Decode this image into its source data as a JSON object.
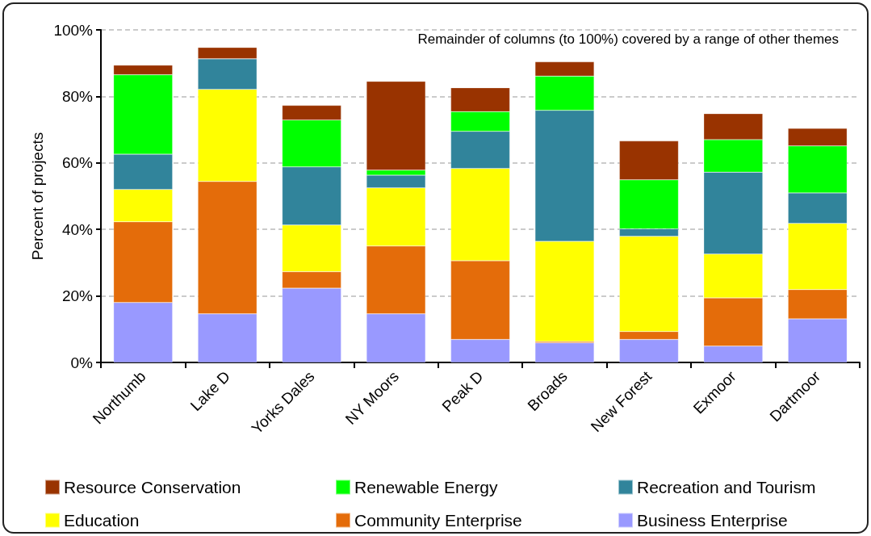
{
  "chart_data": {
    "type": "bar",
    "stacked": true,
    "ylabel": "Percent of projects",
    "annotations": [
      "Remainder of columns (to 100%) covered by a range of other themes"
    ],
    "categories": [
      "Northumb",
      "Lake D",
      "Yorks Dales",
      "NY Moors",
      "Peak D",
      "Broads",
      "New Forest",
      "Exmoor",
      "Dartmoor"
    ],
    "series": [
      {
        "name": "Business Enterprise",
        "color": "#9999ff",
        "values": [
          18.0,
          14.6,
          22.3,
          14.6,
          6.9,
          5.9,
          6.9,
          4.9,
          13.1
        ]
      },
      {
        "name": "Community Enterprise",
        "color": "#e46c0a",
        "values": [
          24.3,
          39.8,
          5.0,
          20.4,
          23.7,
          0.4,
          2.4,
          14.5,
          8.8
        ]
      },
      {
        "name": "Education",
        "color": "#ffff00",
        "values": [
          9.7,
          27.7,
          14.0,
          17.5,
          27.7,
          30.1,
          28.6,
          13.2,
          19.9
        ]
      },
      {
        "name": "Recreation and Tourism",
        "color": "#31849b",
        "values": [
          10.6,
          9.2,
          17.5,
          3.8,
          11.2,
          39.4,
          2.3,
          24.6,
          9.2
        ]
      },
      {
        "name": "Renewable Energy",
        "color": "#00ff00",
        "values": [
          23.9,
          0,
          14.1,
          1.5,
          5.9,
          10.3,
          14.7,
          9.8,
          14.1
        ]
      },
      {
        "name": "Resource Conservation",
        "color": "#993300",
        "values": [
          2.9,
          3.4,
          4.4,
          26.7,
          7.2,
          4.3,
          11.7,
          7.8,
          5.3
        ]
      }
    ],
    "ylim": [
      0,
      100
    ],
    "yticks": [
      {
        "value": 0,
        "label": "0%"
      },
      {
        "value": 20,
        "label": "20%"
      },
      {
        "value": 40,
        "label": "40%"
      },
      {
        "value": 60,
        "label": "60%"
      },
      {
        "value": 80,
        "label": "80%"
      },
      {
        "value": 100,
        "label": "100%"
      }
    ],
    "grid": "y",
    "legend": "bottom"
  }
}
